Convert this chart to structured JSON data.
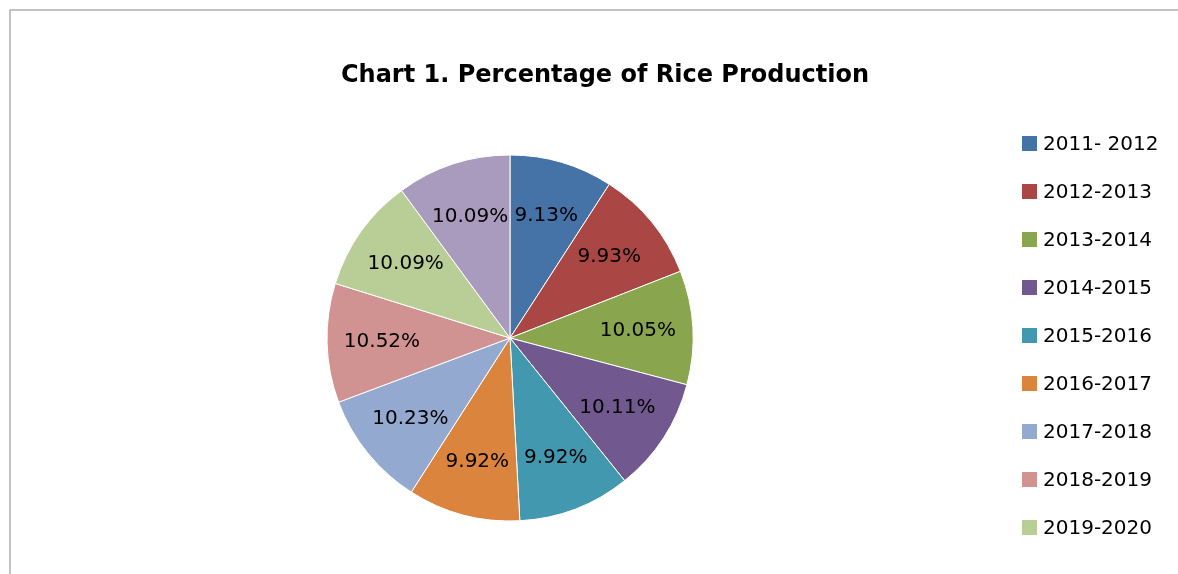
{
  "chart_data": {
    "type": "pie",
    "title": "Chart 1. Percentage of Rice Production",
    "categories": [
      "2011- 2012",
      "2012-2013",
      "2013-2014",
      "2014-2015",
      "2015-2016",
      "2016-2017",
      "2017-2018",
      "2018-2019",
      "2019-2020",
      null
    ],
    "values": [
      9.13,
      9.93,
      10.05,
      10.11,
      9.92,
      9.92,
      10.23,
      10.52,
      10.09,
      10.09
    ],
    "value_labels": [
      "9.13%",
      "9.93%",
      "10.05%",
      "10.11%",
      "9.92%",
      "9.92%",
      "10.23%",
      "10.52%",
      "10.09%",
      "10.09%"
    ],
    "colors": [
      "#4572a7",
      "#aa4643",
      "#89a54e",
      "#71588f",
      "#4198af",
      "#db843d",
      "#93a9cf",
      "#d19392",
      "#b9cd96",
      "#a99bbd"
    ],
    "legend": "right"
  }
}
